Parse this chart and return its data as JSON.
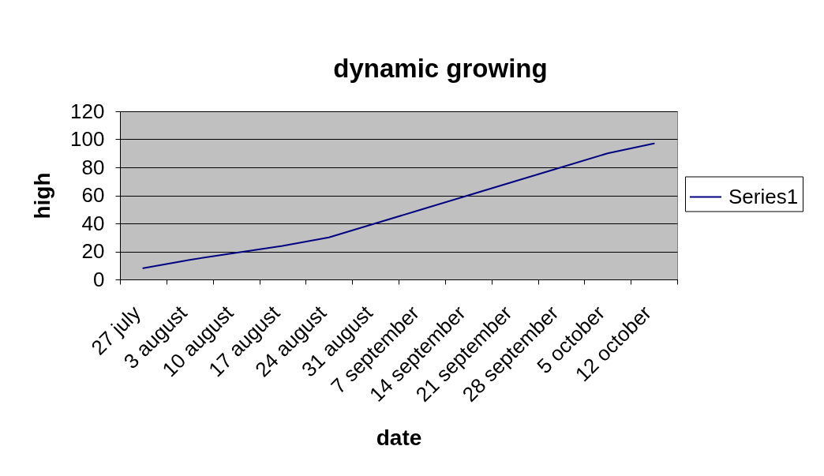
{
  "chart_data": {
    "type": "line",
    "title": "dynamic growing",
    "xlabel": "date",
    "ylabel": "high",
    "categories": [
      "27 july",
      "3 august",
      "10 august",
      "17 august",
      "24 august",
      "31 august",
      "7 september",
      "14 september",
      "21 september",
      "28 september",
      "5 october",
      "12 october"
    ],
    "series": [
      {
        "name": "Series1",
        "color": "#000080",
        "values": [
          8,
          14,
          19,
          24,
          30,
          40,
          50,
          60,
          70,
          80,
          90,
          97
        ]
      }
    ],
    "ylim": [
      0,
      120
    ],
    "yticks": [
      0,
      20,
      40,
      60,
      80,
      100,
      120
    ],
    "grid": "y",
    "legend": "right",
    "marker": "none",
    "line_style": "solid"
  }
}
